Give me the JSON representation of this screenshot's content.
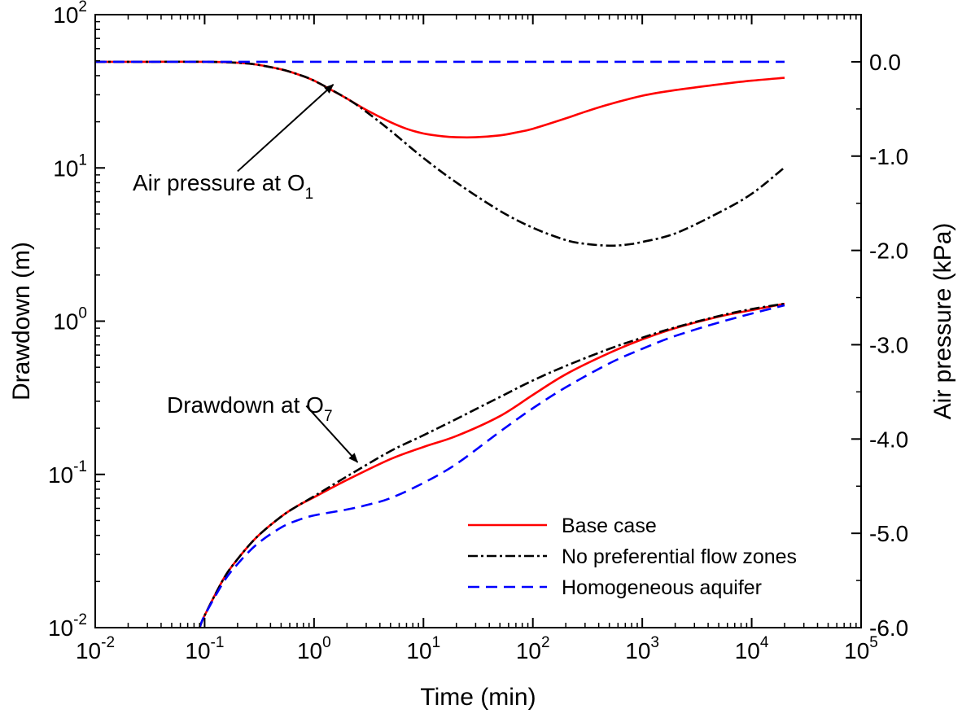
{
  "chart_data": {
    "type": "line",
    "xlabel": "Time (min)",
    "ylabel_left": "Drawdown (m)",
    "ylabel_right": "Air pressure (kPa)",
    "x_scale": "log",
    "xlim": [
      0.01,
      100000
    ],
    "y_left_scale": "log",
    "y_left_lim": [
      0.01,
      100
    ],
    "y_right_lim": [
      -6.0,
      0.5
    ],
    "x_ticks": [
      {
        "value": 0.01,
        "base": "10",
        "exp": "-2"
      },
      {
        "value": 0.1,
        "base": "10",
        "exp": "-1"
      },
      {
        "value": 1,
        "base": "10",
        "exp": "0"
      },
      {
        "value": 10,
        "base": "10",
        "exp": "1"
      },
      {
        "value": 100,
        "base": "10",
        "exp": "2"
      },
      {
        "value": 1000,
        "base": "10",
        "exp": "3"
      },
      {
        "value": 10000,
        "base": "10",
        "exp": "4"
      },
      {
        "value": 100000,
        "base": "10",
        "exp": "5"
      }
    ],
    "y_left_ticks": [
      {
        "value": 0.01,
        "base": "10",
        "exp": "-2"
      },
      {
        "value": 0.1,
        "base": "10",
        "exp": "-1"
      },
      {
        "value": 1,
        "base": "10",
        "exp": "0"
      },
      {
        "value": 10,
        "base": "10",
        "exp": "1"
      },
      {
        "value": 100,
        "base": "10",
        "exp": "2"
      }
    ],
    "y_right_ticks": [
      {
        "value": 0.0,
        "label": "0.0"
      },
      {
        "value": -1.0,
        "label": "-1.0"
      },
      {
        "value": -2.0,
        "label": "-2.0"
      },
      {
        "value": -3.0,
        "label": "-3.0"
      },
      {
        "value": -4.0,
        "label": "-4.0"
      },
      {
        "value": -5.0,
        "label": "-5.0"
      },
      {
        "value": -6.0,
        "label": "-6.0"
      }
    ],
    "annotations": [
      {
        "text": "Air pressure at O",
        "sub": "1",
        "arrow_from": [
          0.2,
          9.5
        ],
        "arrow_to": [
          1.5,
          35
        ]
      },
      {
        "text": "Drawdown at O",
        "sub": "7",
        "arrow_from": [
          0.85,
          0.28
        ],
        "arrow_to": [
          2.5,
          0.12
        ]
      }
    ],
    "legend": {
      "position": "bottom-right",
      "entries": [
        {
          "label": "Base case",
          "series": "base"
        },
        {
          "label": "No preferential flow zones",
          "series": "nopref"
        },
        {
          "label": "Homogeneous aquifer",
          "series": "homog"
        }
      ]
    },
    "series": [
      {
        "id": "base",
        "group": "air_pressure_O1",
        "axis": "right",
        "color": "#ff0000",
        "dash": "solid",
        "x": [
          0.01,
          0.03,
          0.1,
          0.2,
          0.3,
          0.5,
          0.7,
          1,
          1.5,
          2,
          3,
          5,
          7,
          10,
          15,
          20,
          30,
          50,
          70,
          100,
          200,
          300,
          500,
          1000,
          2000,
          5000,
          10000,
          20000
        ],
        "y": [
          0.0,
          0.0,
          0.0,
          -0.01,
          -0.03,
          -0.08,
          -0.13,
          -0.2,
          -0.31,
          -0.39,
          -0.51,
          -0.64,
          -0.71,
          -0.76,
          -0.79,
          -0.8,
          -0.8,
          -0.78,
          -0.75,
          -0.71,
          -0.6,
          -0.53,
          -0.45,
          -0.36,
          -0.3,
          -0.24,
          -0.2,
          -0.17
        ]
      },
      {
        "id": "nopref",
        "group": "air_pressure_O1",
        "axis": "right",
        "color": "#000000",
        "dash": "dashdot",
        "x": [
          0.01,
          0.03,
          0.1,
          0.2,
          0.3,
          0.5,
          0.7,
          1,
          2,
          3,
          5,
          10,
          20,
          50,
          100,
          200,
          300,
          500,
          700,
          1000,
          2000,
          5000,
          10000,
          20000
        ],
        "y": [
          0.0,
          0.0,
          0.0,
          -0.01,
          -0.03,
          -0.08,
          -0.13,
          -0.2,
          -0.39,
          -0.53,
          -0.73,
          -1.02,
          -1.28,
          -1.58,
          -1.76,
          -1.89,
          -1.93,
          -1.95,
          -1.94,
          -1.91,
          -1.82,
          -1.6,
          -1.4,
          -1.12
        ]
      },
      {
        "id": "homog",
        "group": "air_pressure_O1",
        "axis": "right",
        "color": "#0000ff",
        "dash": "dashed",
        "x": [
          0.01,
          20000
        ],
        "y": [
          0.0,
          0.0
        ]
      },
      {
        "id": "base",
        "group": "drawdown_O7",
        "axis": "left",
        "color": "#ff0000",
        "dash": "solid",
        "x": [
          0.09,
          0.1,
          0.15,
          0.2,
          0.3,
          0.5,
          0.7,
          1,
          2,
          5,
          10,
          20,
          50,
          100,
          200,
          500,
          1000,
          2000,
          5000,
          10000,
          20000
        ],
        "y": [
          0.01,
          0.012,
          0.021,
          0.028,
          0.039,
          0.053,
          0.062,
          0.071,
          0.092,
          0.126,
          0.151,
          0.178,
          0.24,
          0.33,
          0.45,
          0.62,
          0.76,
          0.9,
          1.07,
          1.18,
          1.3
        ]
      },
      {
        "id": "nopref",
        "group": "drawdown_O7",
        "axis": "left",
        "color": "#000000",
        "dash": "dashdot",
        "x": [
          0.09,
          0.1,
          0.15,
          0.2,
          0.3,
          0.5,
          0.7,
          1,
          2,
          5,
          10,
          20,
          50,
          100,
          200,
          500,
          1000,
          2000,
          5000,
          10000,
          20000
        ],
        "y": [
          0.01,
          0.012,
          0.021,
          0.028,
          0.039,
          0.053,
          0.062,
          0.072,
          0.097,
          0.142,
          0.18,
          0.23,
          0.32,
          0.41,
          0.51,
          0.66,
          0.78,
          0.91,
          1.08,
          1.2,
          1.3
        ]
      },
      {
        "id": "homog",
        "group": "drawdown_O7",
        "axis": "left",
        "color": "#0000ff",
        "dash": "dashed",
        "x": [
          0.09,
          0.1,
          0.15,
          0.2,
          0.3,
          0.5,
          0.7,
          1,
          2,
          3,
          5,
          10,
          20,
          50,
          100,
          200,
          500,
          1000,
          2000,
          5000,
          10000,
          20000
        ],
        "y": [
          0.01,
          0.012,
          0.02,
          0.026,
          0.035,
          0.045,
          0.05,
          0.054,
          0.059,
          0.063,
          0.07,
          0.088,
          0.117,
          0.19,
          0.27,
          0.37,
          0.53,
          0.66,
          0.8,
          0.98,
          1.12,
          1.27
        ]
      }
    ]
  }
}
